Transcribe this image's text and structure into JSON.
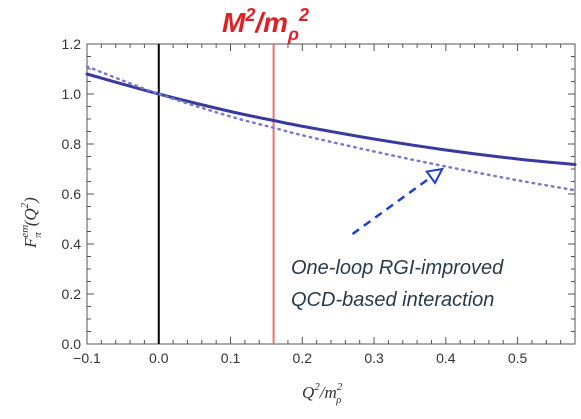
{
  "chart_data": {
    "type": "line",
    "title": {
      "base": "M",
      "exp1": "2",
      "mid": "/m",
      "sub": "ρ",
      "exp2": "2"
    },
    "xlabel": {
      "q": "Q",
      "q_exp": "2",
      "slash": "/",
      "m": "m",
      "m_exp": "2",
      "m_sub": "ρ"
    },
    "ylabel": {
      "f": "F",
      "sup": "em",
      "sub": "π",
      "open": "(",
      "q": "Q",
      "q_exp": "2",
      "close": ")"
    },
    "xlim": [
      -0.1,
      0.58
    ],
    "ylim": [
      0.0,
      1.2
    ],
    "x_ticks": [
      "-0.1",
      "0.0",
      "0.1",
      "0.2",
      "0.3",
      "0.4",
      "0.5"
    ],
    "y_ticks": [
      "0.0",
      "0.2",
      "0.4",
      "0.6",
      "0.8",
      "1.0",
      "1.2"
    ],
    "series": [
      {
        "style": "solid",
        "color": "#3a3a9c",
        "x": [
          -0.1,
          0.0,
          0.1,
          0.16,
          0.2,
          0.3,
          0.4,
          0.5,
          0.58
        ],
        "y": [
          1.08,
          1.0,
          0.93,
          0.894,
          0.871,
          0.82,
          0.776,
          0.74,
          0.718
        ]
      },
      {
        "style": "dotted",
        "color": "#7a7ac8",
        "x": [
          -0.1,
          0.0,
          0.1,
          0.16,
          0.2,
          0.3,
          0.4,
          0.5,
          0.58
        ],
        "y": [
          1.11,
          1.0,
          0.91,
          0.865,
          0.835,
          0.77,
          0.71,
          0.655,
          0.615
        ]
      }
    ],
    "vlines": [
      {
        "x": 0.0,
        "color": "#000000"
      },
      {
        "x": 0.16,
        "color": "#f07070"
      }
    ],
    "annotation": {
      "lines": [
        "One-loop RGI-improved",
        "QCD-based  interaction"
      ],
      "arrow_from": [
        0.27,
        0.44
      ],
      "arrow_to": [
        0.395,
        0.7
      ],
      "arrow_color": "#1f3fd0"
    },
    "grid": false,
    "legend": "none"
  }
}
